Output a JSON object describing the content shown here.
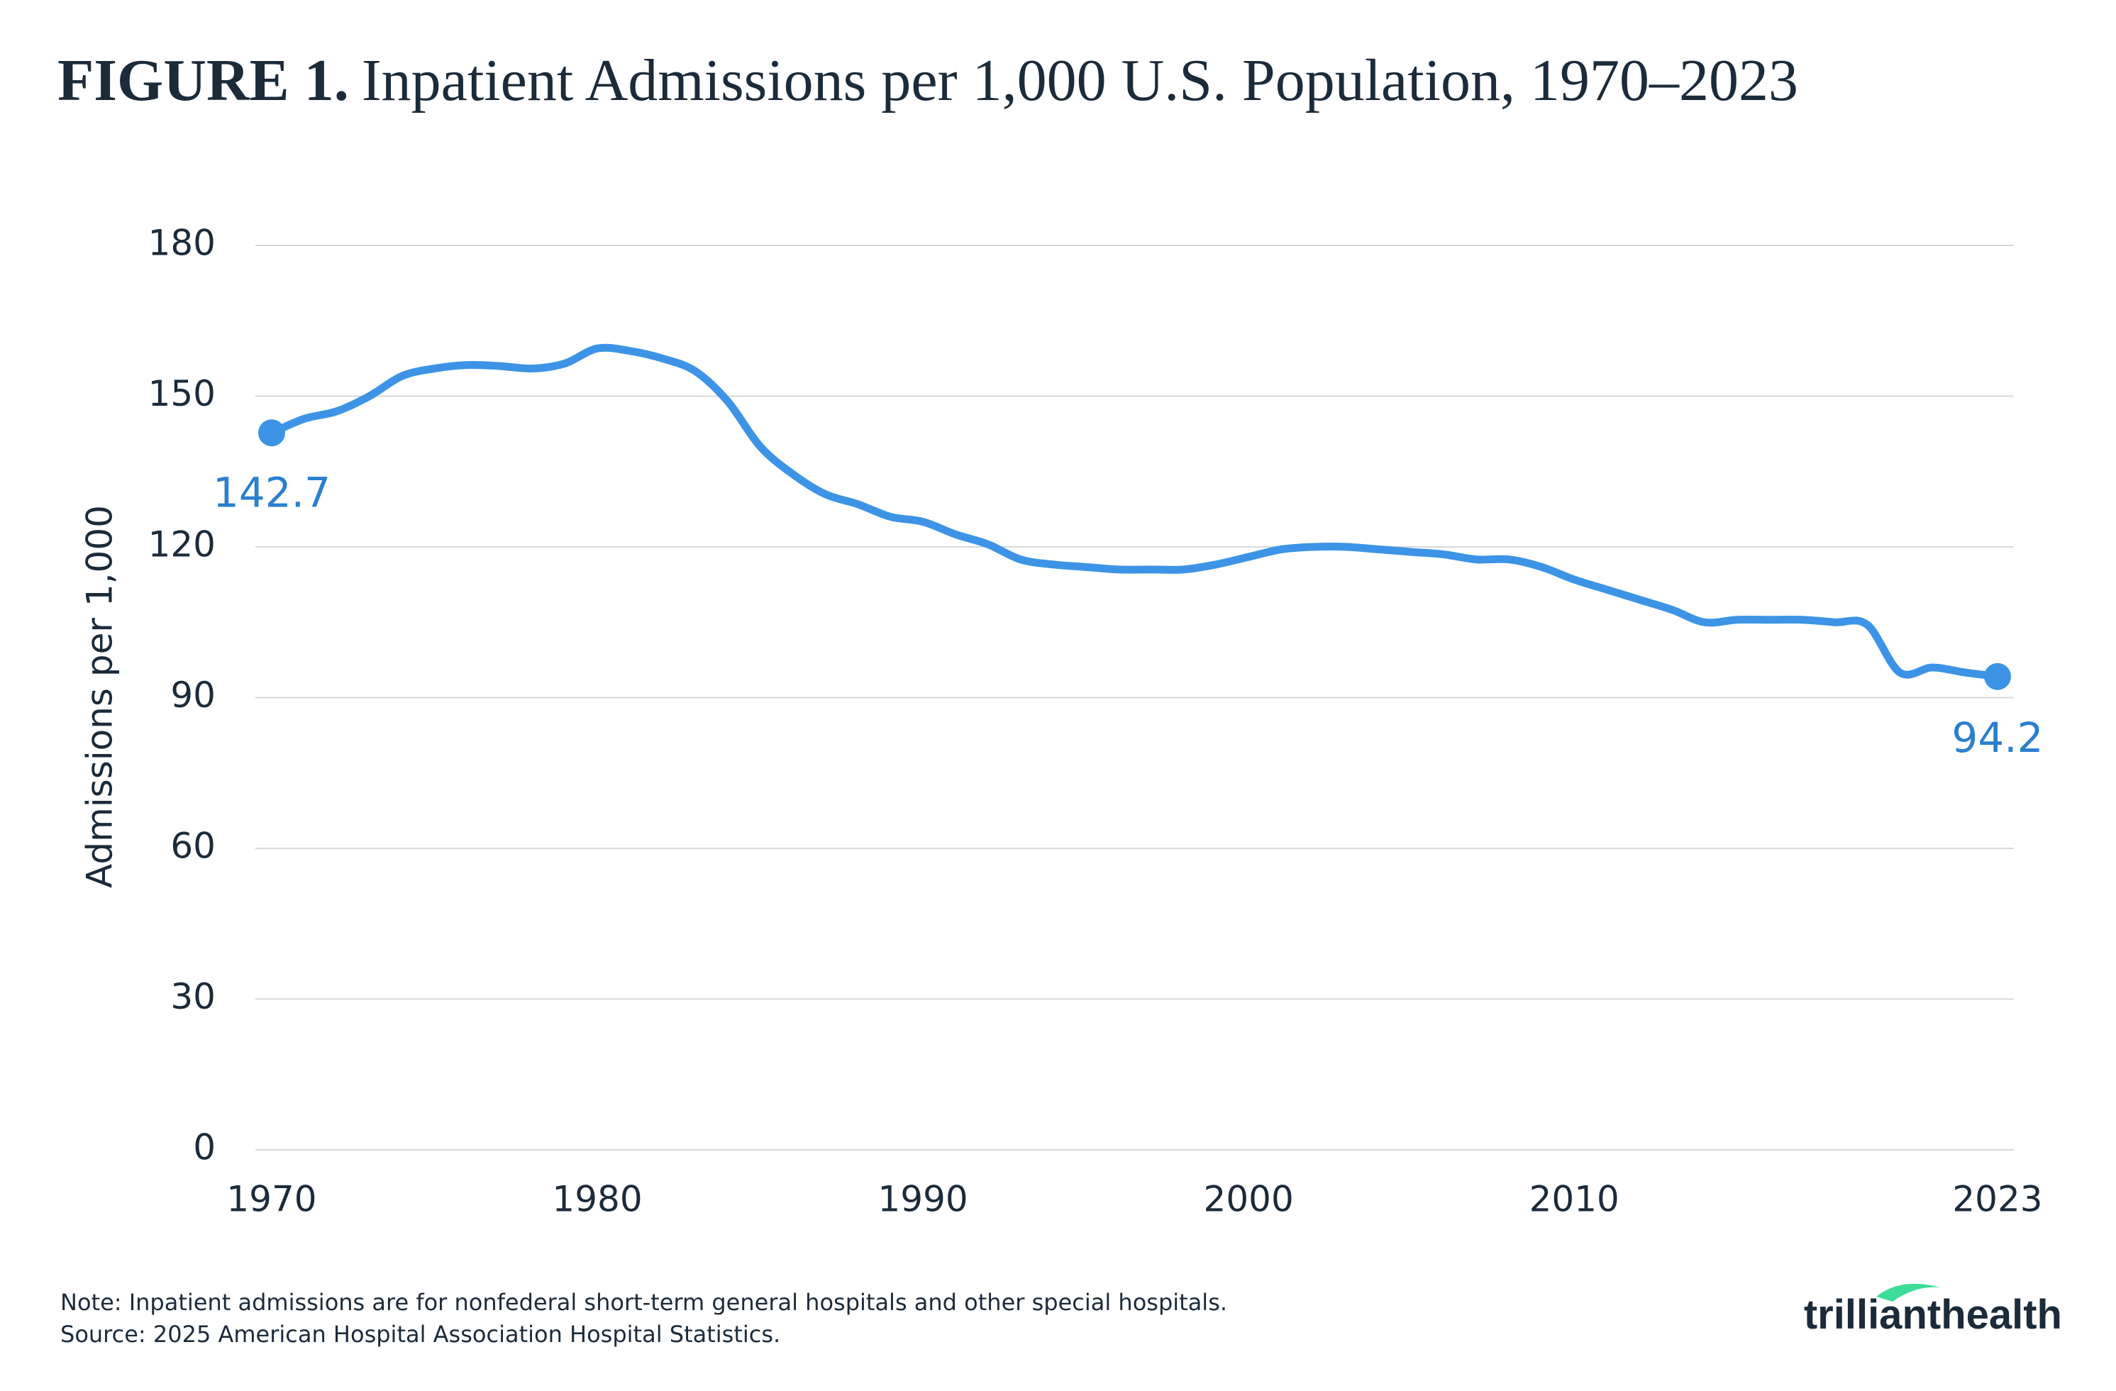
{
  "chart_data": {
    "type": "line",
    "title_label": "FIGURE 1.",
    "title": "Inpatient Admissions per 1,000 U.S. Population, 1970–2023",
    "y_label": "Admissions per 1,000",
    "x": [
      1970,
      1971,
      1972,
      1973,
      1974,
      1975,
      1976,
      1977,
      1978,
      1979,
      1980,
      1981,
      1982,
      1983,
      1984,
      1985,
      1986,
      1987,
      1988,
      1989,
      1990,
      1991,
      1992,
      1993,
      1994,
      1995,
      1996,
      1997,
      1998,
      1999,
      2000,
      2001,
      2002,
      2003,
      2004,
      2005,
      2006,
      2007,
      2008,
      2009,
      2010,
      2011,
      2012,
      2013,
      2014,
      2015,
      2016,
      2017,
      2018,
      2019,
      2020,
      2021,
      2022,
      2023
    ],
    "series": [
      {
        "name": "Inpatient admissions per 1,000",
        "color": "#3d94e6",
        "values": [
          142.7,
          145.5,
          147,
          150,
          154,
          155.5,
          156.2,
          156,
          155.5,
          156.5,
          159.5,
          159,
          157.5,
          155,
          149,
          140,
          134.5,
          130.5,
          128.5,
          126,
          125,
          122.5,
          120.5,
          117.5,
          116.5,
          116,
          115.5,
          115.5,
          115.5,
          116.5,
          118,
          119.5,
          120,
          120,
          119.5,
          119,
          118.5,
          117.5,
          117.5,
          116,
          113.5,
          111.5,
          109.5,
          107.5,
          105,
          105.5,
          105.5,
          105.5,
          105,
          104.5,
          95,
          96,
          95,
          94.2
        ]
      }
    ],
    "label_color": "#2a7fce",
    "end_labels": true,
    "xlim": [
      1970,
      2023
    ],
    "xticks": [
      1970,
      1980,
      1990,
      2000,
      2010,
      2023
    ],
    "ylim": [
      0,
      180
    ],
    "yticks": [
      0,
      30,
      60,
      90,
      120,
      150,
      180
    ],
    "grid": true,
    "note": "Note: Inpatient admissions are for nonfederal short-term general hospitals and other special hospitals.",
    "source": "Source: 2025 American Hospital Association Hospital Statistics.",
    "brand": {
      "first": "trilliant",
      "second": "health"
    }
  }
}
